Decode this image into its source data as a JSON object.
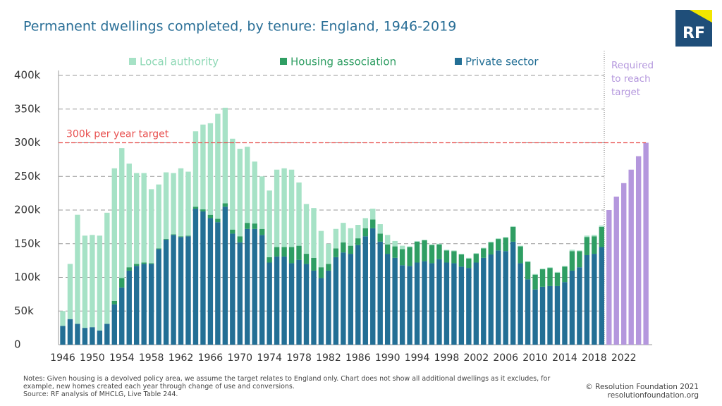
{
  "chart_data": {
    "type": "stacked_bar",
    "title": "Permanent dwellings completed, by tenure: England, 1946-2019",
    "categories": [
      "1946",
      null,
      null,
      null,
      "1950",
      null,
      null,
      null,
      "1954",
      null,
      null,
      null,
      "1958",
      null,
      null,
      null,
      "1962",
      null,
      null,
      null,
      "1966",
      null,
      null,
      null,
      "1970",
      null,
      null,
      null,
      "1974",
      null,
      null,
      null,
      "1978",
      null,
      null,
      null,
      "1982",
      null,
      null,
      null,
      "1986",
      null,
      null,
      null,
      "1990",
      null,
      null,
      null,
      "1994",
      null,
      null,
      null,
      "1998",
      null,
      null,
      null,
      "2002",
      null,
      null,
      null,
      "2006",
      null,
      null,
      null,
      "2010",
      null,
      null,
      null,
      "2014",
      null,
      null,
      null,
      "2018",
      null,
      null,
      null,
      "2022",
      null,
      null,
      null
    ],
    "series": [
      {
        "name": "Local authority",
        "color": "#a6e2c6",
        "values": [
          22000,
          82000,
          162000,
          137000,
          137000,
          141000,
          165000,
          197000,
          193000,
          154000,
          135000,
          133000,
          110000,
          95000,
          99000,
          91000,
          101000,
          95000,
          112000,
          126000,
          136000,
          156000,
          142000,
          135000,
          130000,
          113000,
          92000,
          78000,
          99000,
          115000,
          117000,
          115000,
          94000,
          74000,
          74000,
          54000,
          30000,
          29000,
          29000,
          26000,
          20000,
          15000,
          16000,
          14000,
          14000,
          8000,
          5000,
          1000,
          1000,
          1000,
          1000,
          1000,
          1000,
          1000,
          1000,
          1000,
          1000,
          1000,
          1000,
          1000,
          1000,
          1000,
          1000,
          1000,
          1000,
          1000,
          1000,
          1000,
          1000,
          2000,
          1000,
          2000,
          2000,
          2000,
          null,
          null,
          null,
          null,
          null,
          null
        ]
      },
      {
        "name": "Housing association",
        "color": "#2f9e63",
        "values": [
          0,
          0,
          0,
          0,
          0,
          0,
          0,
          5000,
          14000,
          5000,
          3000,
          2000,
          1000,
          1000,
          1000,
          1000,
          1000,
          1000,
          3000,
          3000,
          5000,
          5000,
          5000,
          6000,
          9000,
          9000,
          8000,
          9000,
          8000,
          14000,
          14000,
          24000,
          21000,
          15000,
          19000,
          16000,
          10000,
          13000,
          15000,
          12000,
          10000,
          12000,
          13000,
          12000,
          14000,
          17000,
          24000,
          28000,
          31000,
          31000,
          27000,
          22000,
          18000,
          18000,
          18000,
          14000,
          13000,
          14000,
          18000,
          17000,
          20000,
          22000,
          25000,
          26000,
          22000,
          26000,
          27000,
          20000,
          23000,
          29000,
          24000,
          27000,
          26000,
          30000,
          null,
          null,
          null,
          null,
          null,
          null
        ]
      },
      {
        "name": "Private sector",
        "color": "#236f95",
        "values": [
          28000,
          38000,
          31000,
          25000,
          26000,
          21000,
          31000,
          60000,
          85000,
          110000,
          117000,
          120000,
          120000,
          142000,
          156000,
          163000,
          160000,
          161000,
          202000,
          198000,
          188000,
          182000,
          205000,
          165000,
          152000,
          172000,
          172000,
          163000,
          122000,
          131000,
          131000,
          121000,
          126000,
          120000,
          110000,
          99000,
          110000,
          130000,
          137000,
          135000,
          148000,
          161000,
          173000,
          153000,
          135000,
          129000,
          118000,
          117000,
          122000,
          124000,
          121000,
          127000,
          122000,
          121000,
          116000,
          114000,
          122000,
          129000,
          134000,
          140000,
          139000,
          153000,
          121000,
          97000,
          82000,
          86000,
          87000,
          87000,
          93000,
          110000,
          115000,
          133000,
          135000,
          145000,
          null,
          null,
          null,
          null,
          null,
          null
        ]
      },
      {
        "name": "Required to reach target",
        "color": "#b497dd",
        "values": [
          null,
          null,
          null,
          null,
          null,
          null,
          null,
          null,
          null,
          null,
          null,
          null,
          null,
          null,
          null,
          null,
          null,
          null,
          null,
          null,
          null,
          null,
          null,
          null,
          null,
          null,
          null,
          null,
          null,
          null,
          null,
          null,
          null,
          null,
          null,
          null,
          null,
          null,
          null,
          null,
          null,
          null,
          null,
          null,
          null,
          null,
          null,
          null,
          null,
          null,
          null,
          null,
          null,
          null,
          null,
          null,
          null,
          null,
          null,
          null,
          null,
          null,
          null,
          null,
          null,
          null,
          null,
          null,
          null,
          null,
          null,
          null,
          null,
          null,
          200000,
          220000,
          240000,
          260000,
          280000,
          300000
        ]
      }
    ],
    "ylim": [
      0,
      400000
    ],
    "yticks": [
      0,
      {
        "value": 50000,
        "label": "50k"
      },
      {
        "value": 100000,
        "label": "100k"
      },
      {
        "value": 150000,
        "label": "150k"
      },
      {
        "value": 200000,
        "label": "200k"
      },
      {
        "value": 250000,
        "label": "250k"
      },
      {
        "value": 300000,
        "label": "300k"
      },
      {
        "value": 350000,
        "label": "350k"
      },
      {
        "value": 400000,
        "label": "400k"
      }
    ],
    "grid": true,
    "target": {
      "value": 300000,
      "label": "300k per year target",
      "color": "#e8504f"
    },
    "notes": [
      "Notes: Given housing is a devolved policy area, we assume the target relates to England only. Chart does not show all additional dwellings as it excludes, for example, new homes created each year through change of use and conversions.",
      "Source: RF analysis of MHCLG, Live Table 244."
    ],
    "credits": [
      "© Resolution Foundation 2021",
      "resolutionfoundation.org"
    ],
    "logo": "RF"
  }
}
